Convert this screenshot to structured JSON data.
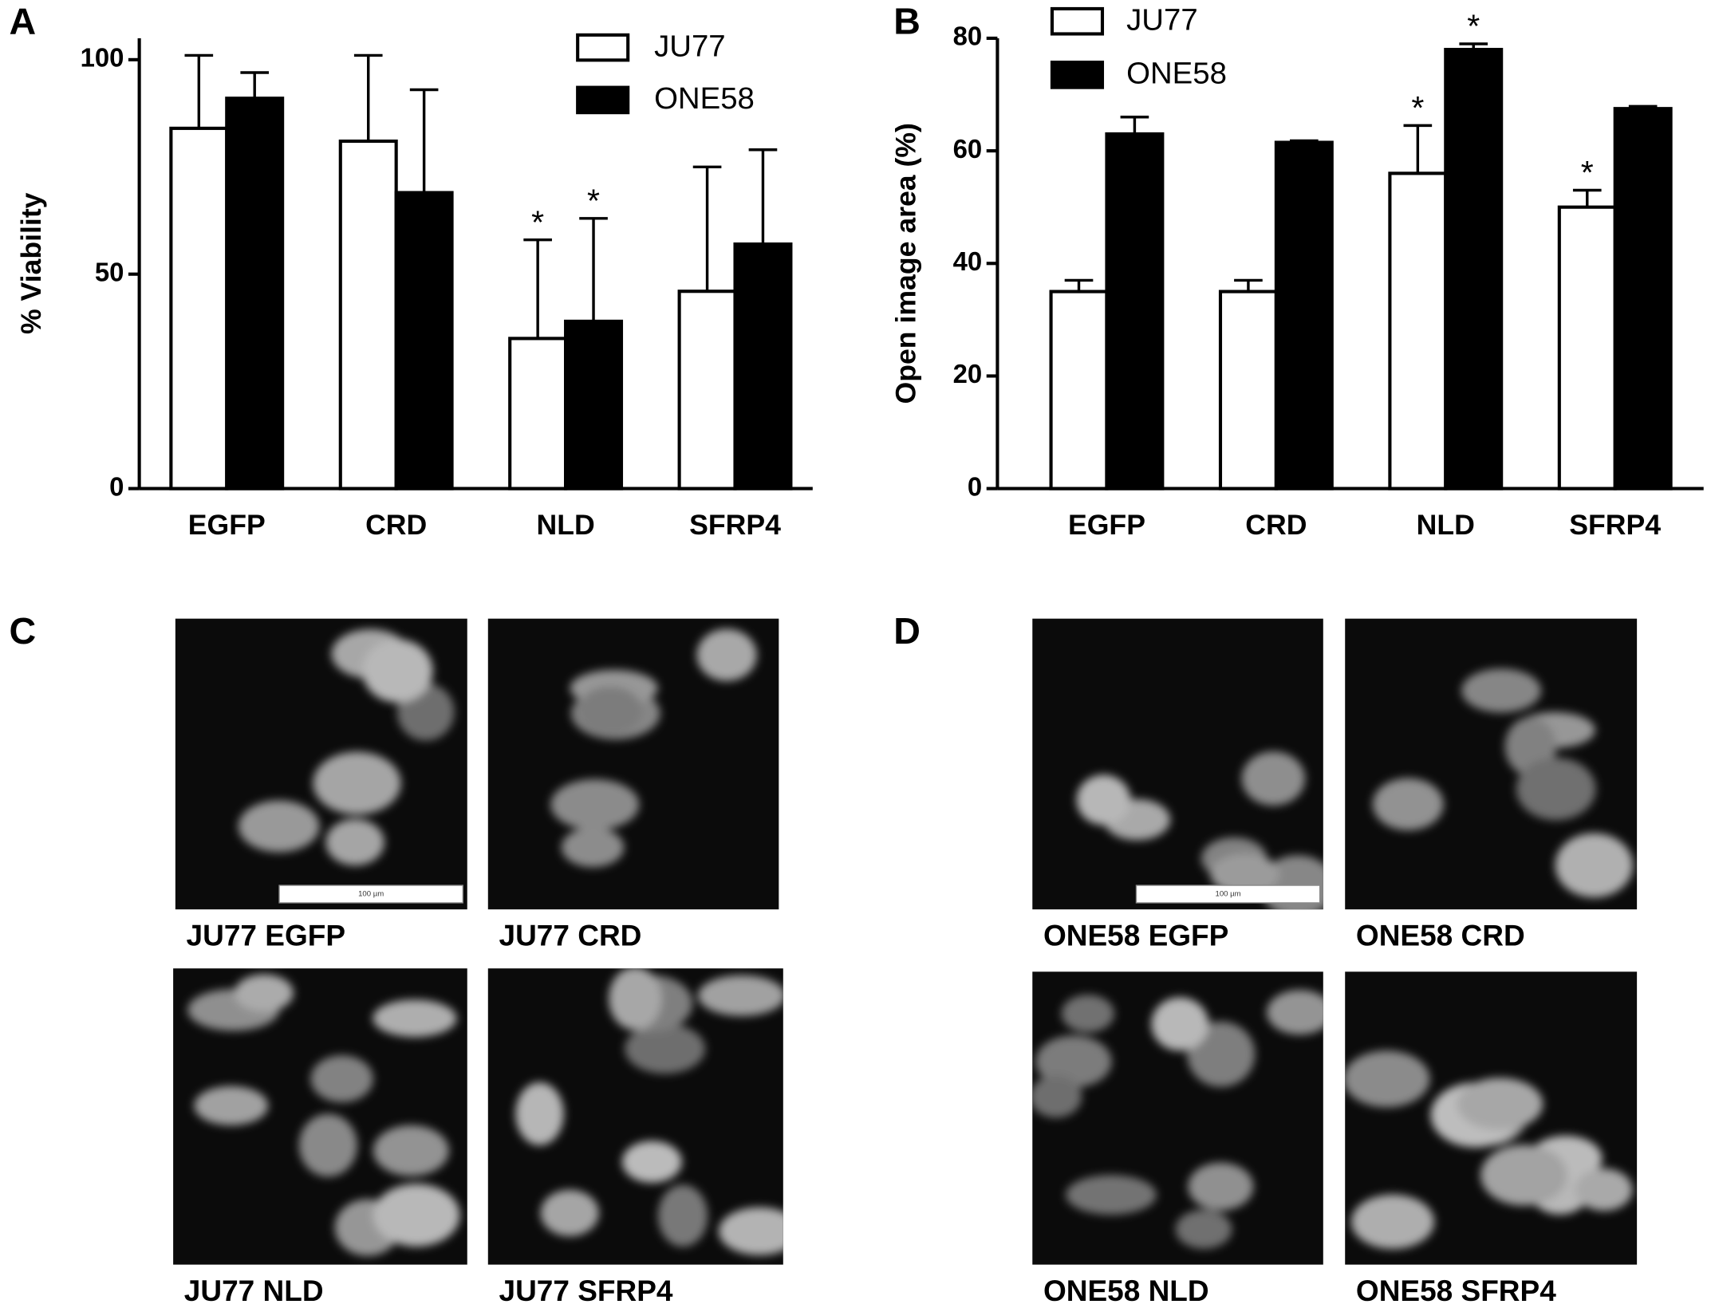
{
  "chart_data": [
    {
      "type": "bar",
      "panel": "A",
      "ylabel": "% Viability",
      "categories": [
        "EGFP",
        "CRD",
        "NLD",
        "SFRP4"
      ],
      "series": [
        {
          "name": "JU77",
          "color": "#ffffff",
          "values": [
            84,
            81,
            35,
            46
          ],
          "errors": [
            17,
            20,
            23,
            29
          ],
          "markers": [
            null,
            null,
            "*",
            null
          ]
        },
        {
          "name": "ONE58",
          "color": "#000000",
          "values": [
            91,
            69,
            39,
            57
          ],
          "errors": [
            6,
            24,
            24,
            22
          ],
          "markers": [
            null,
            null,
            "*",
            null
          ]
        }
      ],
      "ylim": [
        0,
        105
      ],
      "yticks": [
        0,
        50,
        100
      ],
      "legend": "top-right"
    },
    {
      "type": "bar",
      "panel": "B",
      "ylabel": "Open image area (%)",
      "categories": [
        "EGFP",
        "CRD",
        "NLD",
        "SFRP4"
      ],
      "series": [
        {
          "name": "JU77",
          "color": "#ffffff",
          "values": [
            35,
            35,
            56,
            50
          ],
          "errors": [
            2,
            2,
            8.5,
            3
          ],
          "markers": [
            null,
            null,
            "*",
            "*"
          ]
        },
        {
          "name": "ONE58",
          "color": "#000000",
          "values": [
            63,
            61.5,
            78,
            67.5
          ],
          "errors": [
            3,
            0.3,
            1,
            0.4
          ],
          "markers": [
            null,
            null,
            "*",
            null
          ]
        }
      ],
      "ylim": [
        0,
        80
      ],
      "yticks": [
        0,
        20,
        40,
        60,
        80
      ],
      "legend": "top-left"
    }
  ],
  "micrographs": [
    {
      "panel": "C",
      "images": [
        {
          "label": "JU77 EGFP",
          "scale_bar": "100 µm"
        },
        {
          "label": "JU77 CRD"
        },
        {
          "label": "JU77 NLD"
        },
        {
          "label": "JU77 SFRP4"
        }
      ]
    },
    {
      "panel": "D",
      "images": [
        {
          "label": "ONE58 EGFP",
          "scale_bar": "100 µm"
        },
        {
          "label": "ONE58 CRD"
        },
        {
          "label": "ONE58 NLD"
        },
        {
          "label": "ONE58 SFRP4"
        }
      ]
    }
  ]
}
